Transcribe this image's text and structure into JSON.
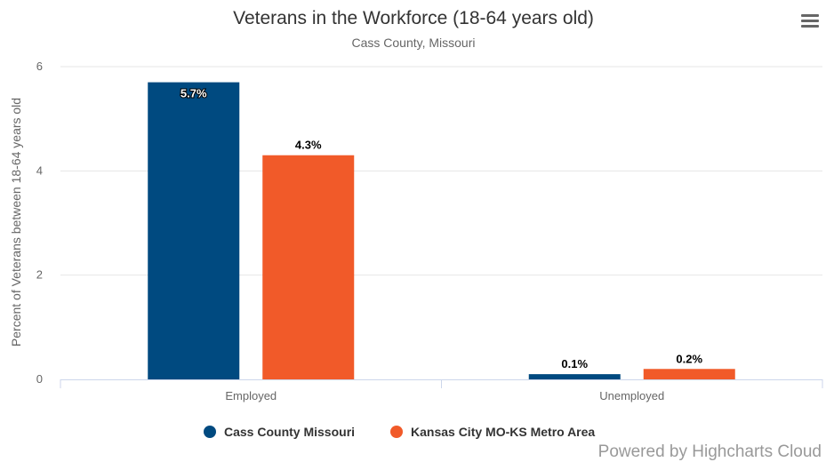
{
  "chart_data": {
    "type": "bar",
    "title": "Veterans in the Workforce (18-64 years old)",
    "subtitle": "Cass County, Missouri",
    "ylabel": "Percent of Veterans between 18-64 years old",
    "xlabel": "",
    "categories": [
      "Employed",
      "Unemployed"
    ],
    "ylim": [
      0,
      6
    ],
    "yticks": [
      "0",
      "2",
      "4",
      "6"
    ],
    "grid": true,
    "legend_position": "bottom-center",
    "series": [
      {
        "name": "Cass County Missouri",
        "color": "#004a80",
        "values": [
          5.7,
          0.1
        ],
        "labels": [
          "5.7%",
          "0.1%"
        ]
      },
      {
        "name": "Kansas City MO-KS Metro Area",
        "color": "#f15a29",
        "values": [
          4.3,
          0.2
        ],
        "labels": [
          "4.3%",
          "0.2%"
        ]
      }
    ]
  },
  "credits": "Powered by Highcharts Cloud",
  "menu_icon": "hamburger-menu-icon"
}
